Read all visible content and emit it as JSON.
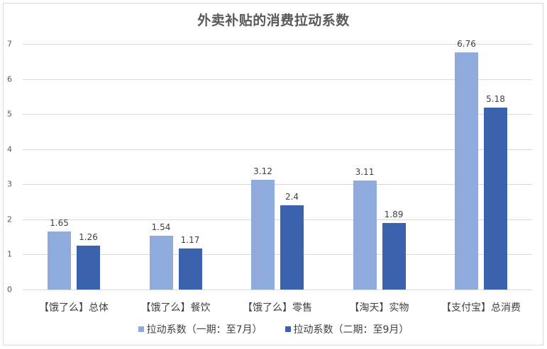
{
  "chart_data": {
    "type": "bar",
    "title": "外卖补贴的消费拉动系数",
    "xlabel": "",
    "ylabel": "",
    "ylim": [
      0,
      7
    ],
    "yticks": [
      0,
      1,
      2,
      3,
      4,
      5,
      6,
      7
    ],
    "grid": true,
    "legend_position": "bottom",
    "categories": [
      "【饿了么】总体",
      "【饿了么】餐饮",
      "【饿了么】零售",
      "【淘天】实物",
      "【支付宝】总消费"
    ],
    "series": [
      {
        "name": "拉动系数（一期：至7月）",
        "color": "#8faadc",
        "values": [
          1.65,
          1.54,
          3.12,
          3.11,
          6.76
        ],
        "labels": [
          "1.65",
          "1.54",
          "3.12",
          "3.11",
          "6.76"
        ]
      },
      {
        "name": "拉动系数（二期：至9月）",
        "color": "#3a62ad",
        "values": [
          1.26,
          1.17,
          2.4,
          1.89,
          5.18
        ],
        "labels": [
          "1.26",
          "1.17",
          "2.4",
          "1.89",
          "5.18"
        ]
      }
    ]
  }
}
